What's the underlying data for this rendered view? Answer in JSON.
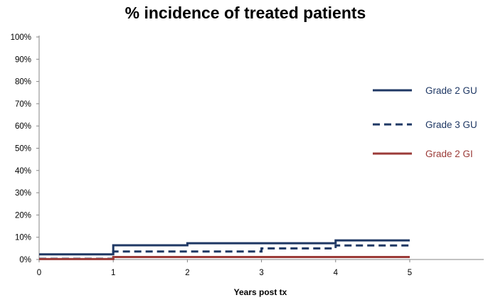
{
  "chart_data": {
    "type": "line",
    "step": true,
    "title": "% incidence of treated patients",
    "xlabel": "Years post tx",
    "ylabel": "",
    "xlim": [
      0,
      6
    ],
    "ylim": [
      0,
      100
    ],
    "x_ticks": [
      0,
      1,
      2,
      3,
      4,
      5
    ],
    "y_ticks": [
      "0%",
      "10%",
      "20%",
      "30%",
      "40%",
      "50%",
      "60%",
      "70%",
      "80%",
      "90%",
      "100%"
    ],
    "grid": false,
    "legend_position": "right",
    "series": [
      {
        "name": "Grade 2 GU",
        "style": "solid",
        "color": "#1f3864",
        "x": [
          0,
          1,
          2,
          3,
          4,
          5
        ],
        "values": [
          2.3,
          6.4,
          7.3,
          7.3,
          8.6,
          8.6
        ]
      },
      {
        "name": "Grade 3 GU",
        "style": "dashed",
        "color": "#1f3864",
        "x": [
          0,
          1,
          2,
          3,
          4,
          5
        ],
        "values": [
          0.3,
          3.6,
          3.6,
          5.0,
          6.3,
          6.3
        ]
      },
      {
        "name": "Grade 2 GI",
        "style": "solid",
        "color": "#9b3b38",
        "x": [
          0,
          1,
          2,
          3,
          4,
          5
        ],
        "values": [
          0.2,
          1.1,
          1.1,
          1.1,
          1.1,
          1.1
        ]
      }
    ]
  }
}
